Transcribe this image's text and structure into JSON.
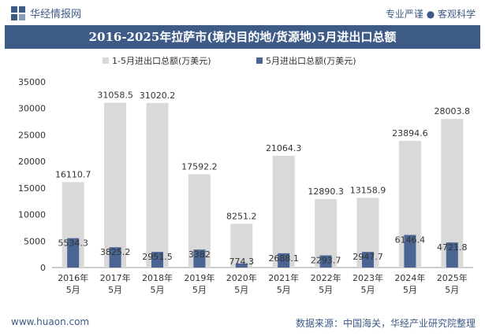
{
  "header": {
    "brand_name": "华经情报网",
    "tagline": "专业严谨 ● 客观科学"
  },
  "footer": {
    "url": "www.huaon.com",
    "source": "数据来源：中国海关，华经产业研究院整理"
  },
  "colors": {
    "brand": "#3e5a86",
    "series_cumulative": "#d9d9d9",
    "series_month": "#4a6592"
  },
  "chart_data": {
    "type": "bar",
    "title": "2016-2025年拉萨市(境内目的地/货源地)5月进出口总额",
    "xlabel": "",
    "ylabel": "",
    "ylim": [
      0,
      35000
    ],
    "yticks": [
      "0",
      "5000",
      "10000",
      "15000",
      "20000",
      "25000",
      "30000",
      "35000"
    ],
    "categories": [
      "2016年\n5月",
      "2017年\n5月",
      "2018年\n5月",
      "2019年\n5月",
      "2020年\n5月",
      "2021年\n5月",
      "2022年\n5月",
      "2023年\n5月",
      "2024年\n5月",
      "2025年\n5月"
    ],
    "series": [
      {
        "name": "1-5月进出口总额(万美元)",
        "values": [
          16110.7,
          31058.5,
          31020.2,
          17592.2,
          8251.2,
          21064.3,
          12890.3,
          13158.9,
          23894.6,
          28003.8
        ],
        "labels": [
          "16110.7",
          "31058.5",
          "31020.2",
          "17592.2",
          "8251.2",
          "21064.3",
          "12890.3",
          "13158.9",
          "23894.6",
          "28003.8"
        ]
      },
      {
        "name": "5月进出口总额(万美元)",
        "values": [
          5534.3,
          3825.2,
          2951.5,
          3382,
          774.3,
          2688.1,
          2293.7,
          2947.7,
          6146.4,
          4721.8
        ],
        "labels": [
          "5534.3",
          "3825.2",
          "2951.5",
          "3382",
          "774.3",
          "2688.1",
          "2293.7",
          "2947.7",
          "6146.4",
          "4721.8"
        ]
      }
    ],
    "legend": "top-center",
    "grid": false
  }
}
